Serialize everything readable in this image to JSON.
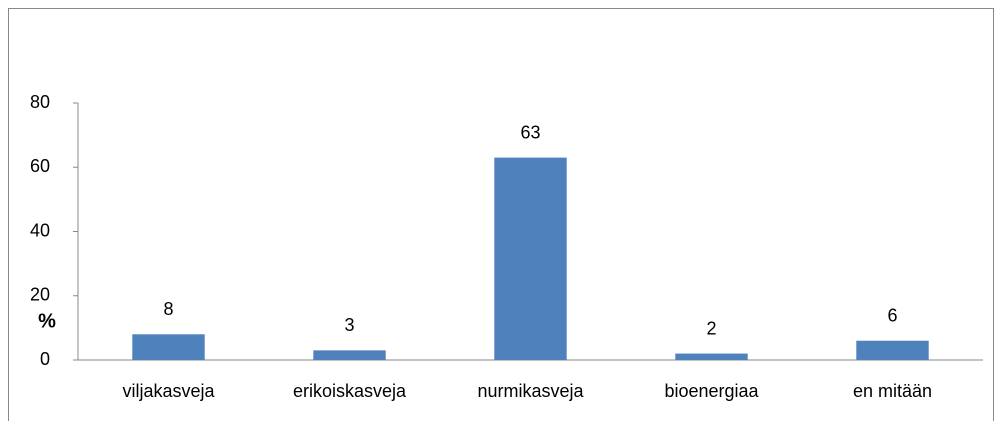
{
  "chart_data": {
    "type": "bar",
    "y_label": "%",
    "categories": [
      "viljakasveja",
      "erikoiskasveja",
      "nurmikasveja",
      "bioenergiaa",
      "en mitään"
    ],
    "values": [
      8,
      3,
      63,
      2,
      6
    ],
    "color": "#4f81bd",
    "ylim": [
      0,
      80
    ],
    "yticks": [
      0,
      20,
      40,
      60,
      80
    ],
    "grid": false
  }
}
